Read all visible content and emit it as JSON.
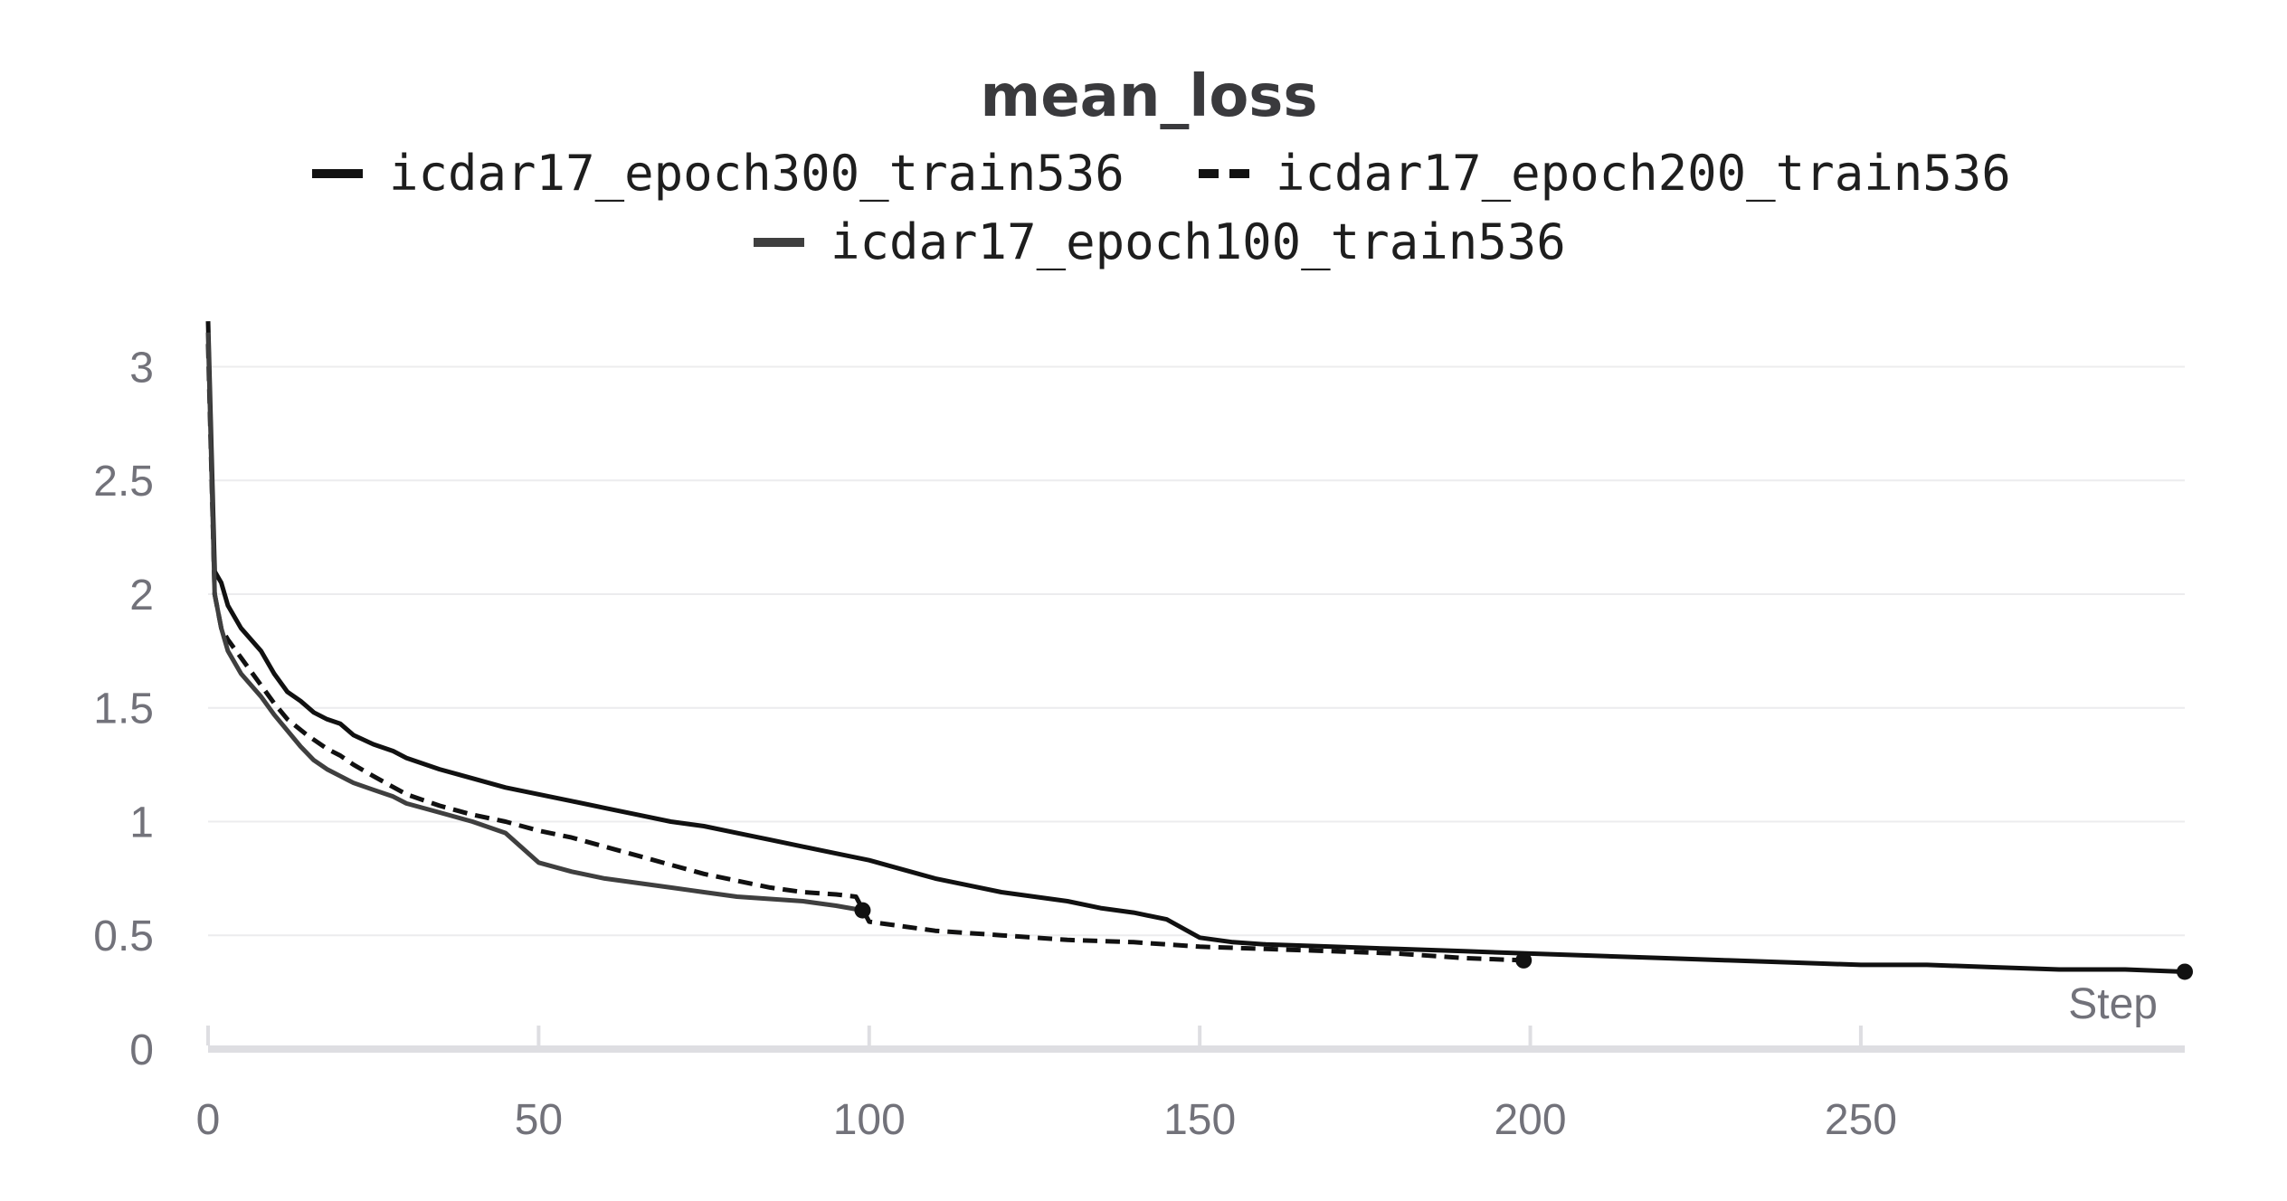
{
  "chart_data": {
    "type": "line",
    "title": "mean_loss",
    "xlabel": "Step",
    "ylabel": "",
    "xlim": [
      0,
      299
    ],
    "ylim": [
      0,
      3.3
    ],
    "xticks": [
      "0",
      "50",
      "100",
      "150",
      "200",
      "250"
    ],
    "yticks": [
      "0",
      "0.5",
      "1",
      "1.5",
      "2",
      "2.5",
      "3"
    ],
    "grid": true,
    "legend_position": "top-center",
    "series": [
      {
        "name": "icdar17_epoch300_train536",
        "line_style": "solid",
        "color": "#111111",
        "x": [
          0,
          1,
          2,
          3,
          5,
          8,
          10,
          12,
          14,
          16,
          18,
          20,
          22,
          25,
          28,
          30,
          35,
          40,
          45,
          50,
          55,
          60,
          65,
          70,
          75,
          80,
          85,
          90,
          95,
          100,
          105,
          110,
          115,
          120,
          125,
          130,
          135,
          140,
          145,
          150,
          155,
          160,
          170,
          180,
          190,
          200,
          210,
          220,
          230,
          240,
          250,
          260,
          270,
          280,
          290,
          299
        ],
        "y": [
          3.2,
          2.1,
          2.05,
          1.95,
          1.85,
          1.75,
          1.65,
          1.57,
          1.53,
          1.48,
          1.45,
          1.43,
          1.38,
          1.34,
          1.31,
          1.28,
          1.23,
          1.19,
          1.15,
          1.12,
          1.09,
          1.06,
          1.03,
          1.0,
          0.98,
          0.95,
          0.92,
          0.89,
          0.86,
          0.83,
          0.79,
          0.75,
          0.72,
          0.69,
          0.67,
          0.65,
          0.62,
          0.6,
          0.57,
          0.49,
          0.47,
          0.46,
          0.45,
          0.44,
          0.43,
          0.42,
          0.41,
          0.4,
          0.39,
          0.38,
          0.37,
          0.37,
          0.36,
          0.35,
          0.35,
          0.34
        ]
      },
      {
        "name": "icdar17_epoch200_train536",
        "line_style": "dashed",
        "color": "#111111",
        "x": [
          0,
          1,
          2,
          3,
          5,
          8,
          10,
          12,
          15,
          18,
          20,
          22,
          25,
          30,
          35,
          40,
          45,
          50,
          55,
          60,
          65,
          70,
          75,
          80,
          85,
          90,
          95,
          98,
          100,
          105,
          110,
          120,
          130,
          140,
          150,
          160,
          170,
          180,
          190,
          199
        ],
        "y": [
          3.1,
          2.0,
          1.85,
          1.8,
          1.72,
          1.6,
          1.52,
          1.45,
          1.38,
          1.32,
          1.29,
          1.25,
          1.2,
          1.12,
          1.07,
          1.03,
          1.0,
          0.96,
          0.93,
          0.89,
          0.85,
          0.81,
          0.77,
          0.74,
          0.71,
          0.69,
          0.68,
          0.67,
          0.56,
          0.54,
          0.52,
          0.5,
          0.48,
          0.47,
          0.45,
          0.44,
          0.43,
          0.42,
          0.4,
          0.39
        ]
      },
      {
        "name": "icdar17_epoch100_train536",
        "line_style": "solid",
        "color": "#3f3f3f",
        "x": [
          0,
          1,
          2,
          3,
          5,
          8,
          10,
          12,
          14,
          16,
          18,
          20,
          22,
          25,
          28,
          30,
          35,
          40,
          45,
          50,
          55,
          60,
          65,
          70,
          75,
          80,
          85,
          90,
          95,
          99
        ],
        "y": [
          3.15,
          2.0,
          1.85,
          1.75,
          1.65,
          1.55,
          1.47,
          1.4,
          1.33,
          1.27,
          1.23,
          1.2,
          1.17,
          1.14,
          1.11,
          1.08,
          1.04,
          1.0,
          0.95,
          0.82,
          0.78,
          0.75,
          0.73,
          0.71,
          0.69,
          0.67,
          0.66,
          0.65,
          0.63,
          0.61
        ]
      }
    ]
  }
}
